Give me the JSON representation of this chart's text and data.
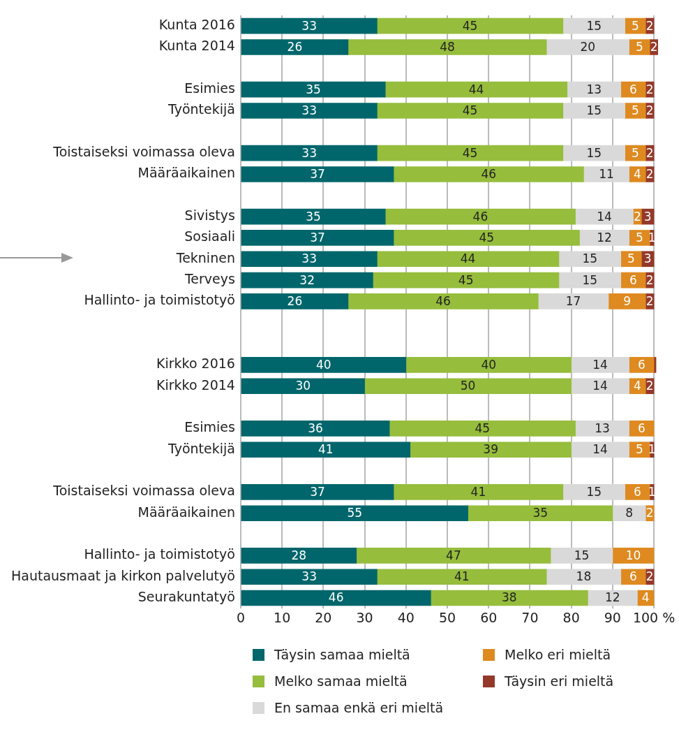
{
  "chart_data": {
    "type": "bar",
    "orientation": "horizontal",
    "stacked": true,
    "categories": [
      "Kunta 2016",
      "Kunta 2014",
      null,
      "Esimies",
      "Työntekijä",
      null,
      "Toistaiseksi voimassa oleva",
      "Määräaikainen",
      null,
      "Sivistys",
      "Sosiaali",
      "Tekninen",
      "Terveys",
      "Hallinto- ja toimistotyö",
      null,
      null,
      "Kirkko 2016",
      "Kirkko 2014",
      null,
      "Esimies",
      "Työntekijä",
      null,
      "Toistaiseksi voimassa oleva",
      "Määräaikainen",
      null,
      "Hallinto- ja toimistotyö",
      "Hautausmaat ja kirkon palvelutyö",
      "Seurakuntatyö"
    ],
    "series": [
      {
        "name": "Täysin samaa mieltä",
        "color": "#00666b",
        "values": [
          33,
          26,
          null,
          35,
          33,
          null,
          33,
          37,
          null,
          35,
          37,
          33,
          32,
          26,
          null,
          null,
          40,
          30,
          null,
          36,
          41,
          null,
          37,
          55,
          null,
          28,
          33,
          46
        ],
        "value_labels": [
          "33",
          "26",
          null,
          "35",
          "33",
          null,
          "33",
          "37",
          null,
          "35",
          "37",
          "33",
          "32",
          "26",
          null,
          null,
          "40",
          "30",
          null,
          "36",
          "41",
          null,
          "37",
          "55",
          null,
          "28",
          "33",
          "46"
        ]
      },
      {
        "name": "Melko samaa mieltä",
        "color": "#96bd3c",
        "values": [
          45,
          48,
          null,
          44,
          45,
          null,
          45,
          46,
          null,
          46,
          45,
          44,
          45,
          46,
          null,
          null,
          40,
          50,
          null,
          45,
          39,
          null,
          41,
          35,
          null,
          47,
          41,
          38
        ],
        "value_labels": [
          "45",
          "48",
          null,
          "44",
          "45",
          null,
          "45",
          "46",
          null,
          "46",
          "45",
          "44",
          "45",
          "46",
          null,
          null,
          "40",
          "50",
          null,
          "45",
          "39",
          null,
          "41",
          "35",
          null,
          "47",
          "41",
          "38"
        ]
      },
      {
        "name": "En samaa enkä eri mieltä",
        "color": "#d9d9d9",
        "values": [
          15,
          20,
          null,
          13,
          15,
          null,
          15,
          11,
          null,
          14,
          12,
          15,
          15,
          17,
          null,
          null,
          14,
          14,
          null,
          13,
          14,
          null,
          15,
          8,
          null,
          15,
          18,
          12
        ],
        "value_labels": [
          "15",
          "20",
          null,
          "13",
          "15",
          null,
          "15",
          "11",
          null,
          "14",
          "12",
          "15",
          "15",
          "17",
          null,
          null,
          "14",
          "14",
          null,
          "13",
          "14",
          null,
          "15",
          "8",
          null,
          "15",
          "18",
          "12"
        ]
      },
      {
        "name": "Melko eri mieltä",
        "color": "#de8a20",
        "values": [
          5,
          5,
          null,
          6,
          5,
          null,
          5,
          4,
          null,
          2,
          5,
          5,
          6,
          9,
          null,
          null,
          6,
          4,
          null,
          6,
          5,
          null,
          6,
          2,
          null,
          10,
          6,
          4
        ],
        "value_labels": [
          "5",
          "5",
          null,
          "6",
          "5",
          null,
          "5",
          "4",
          null,
          "2",
          "5",
          "5",
          "6",
          "9",
          null,
          null,
          "6",
          "4",
          null,
          "6",
          "5",
          null,
          "6",
          "2",
          null,
          "10",
          "6",
          "4"
        ]
      },
      {
        "name": "Täysin eri mieltä",
        "color": "#94392a",
        "values": [
          2,
          2,
          null,
          2,
          2,
          null,
          2,
          2,
          null,
          3,
          1,
          3,
          2,
          2,
          null,
          null,
          0.5,
          2,
          null,
          null,
          1,
          null,
          1,
          null,
          null,
          null,
          2,
          null
        ],
        "value_labels": [
          "2",
          "2",
          null,
          "2",
          "2",
          null,
          "2",
          "2",
          null,
          "3",
          "1",
          "3",
          "2",
          "2",
          null,
          null,
          null,
          "2",
          null,
          null,
          "1",
          null,
          "1",
          null,
          null,
          null,
          "2",
          null
        ]
      }
    ],
    "xlim": [
      0,
      101
    ],
    "xticks": [
      0,
      10,
      20,
      30,
      40,
      50,
      60,
      70,
      80,
      90,
      {
        "value": 100,
        "label": "100 %"
      }
    ],
    "grid": "x",
    "legend": "bottom"
  }
}
